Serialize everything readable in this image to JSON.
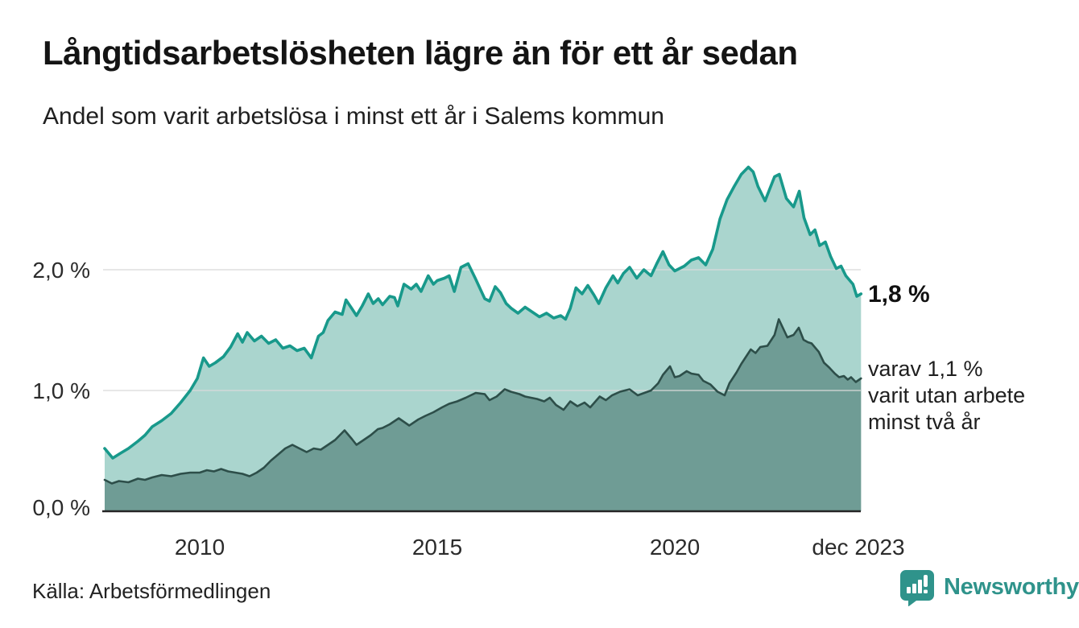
{
  "header": {
    "title": "Långtidsarbetslösheten lägre än för ett år sedan",
    "subtitle": "Andel som varit arbetslösa i minst ett år i Salems kommun"
  },
  "chart_data": {
    "type": "area",
    "title": "Långtidsarbetslösheten lägre än för ett år sedan",
    "subtitle": "Andel som varit arbetslösa i minst ett år i Salems kommun",
    "xlabel": "",
    "ylabel": "",
    "unit": "%",
    "ylim": [
      0,
      3
    ],
    "x_range": [
      2008.0,
      2023.92
    ],
    "grid": true,
    "grid_color": "#d9d9d9",
    "axis_color": "#252525",
    "legend_position": "none",
    "y_axis": {
      "ticks": [
        {
          "label": "0,0 %",
          "value": 0
        },
        {
          "label": "1,0 %",
          "value": 1
        },
        {
          "label": "2,0 %",
          "value": 2
        }
      ]
    },
    "x_axis": {
      "ticks": [
        {
          "label": "2010",
          "year": 2010
        },
        {
          "label": "2015",
          "year": 2015
        },
        {
          "label": "2020",
          "year": 2020
        },
        {
          "label": "dec 2023",
          "year": 2023.92
        }
      ]
    },
    "series": [
      {
        "name": "arbetslösa minst ett år",
        "color": "#18998b",
        "fill": "#aad5ce",
        "stroke_width": 3.6,
        "x": [
          2008.0,
          2008.17,
          2008.33,
          2008.5,
          2008.7,
          2008.85,
          2009.0,
          2009.2,
          2009.4,
          2009.6,
          2009.8,
          2009.95,
          2010.08,
          2010.2,
          2010.33,
          2010.5,
          2010.65,
          2010.8,
          2010.9,
          2011.0,
          2011.15,
          2011.3,
          2011.45,
          2011.6,
          2011.75,
          2011.9,
          2012.05,
          2012.2,
          2012.35,
          2012.5,
          2012.6,
          2012.7,
          2012.85,
          2013.0,
          2013.08,
          2013.2,
          2013.3,
          2013.42,
          2013.55,
          2013.65,
          2013.76,
          2013.85,
          2014.0,
          2014.1,
          2014.17,
          2014.3,
          2014.45,
          2014.56,
          2014.66,
          2014.81,
          2014.92,
          2015.0,
          2015.15,
          2015.25,
          2015.36,
          2015.5,
          2015.65,
          2015.8,
          2016.0,
          2016.1,
          2016.22,
          2016.33,
          2016.45,
          2016.56,
          2016.7,
          2016.85,
          2017.0,
          2017.15,
          2017.3,
          2017.45,
          2017.6,
          2017.7,
          2017.8,
          2017.92,
          2018.05,
          2018.17,
          2018.3,
          2018.4,
          2018.55,
          2018.7,
          2018.8,
          2018.92,
          2019.05,
          2019.2,
          2019.35,
          2019.5,
          2019.62,
          2019.75,
          2019.88,
          2020.0,
          2020.2,
          2020.35,
          2020.5,
          2020.65,
          2020.8,
          2020.95,
          2021.1,
          2021.25,
          2021.4,
          2021.55,
          2021.65,
          2021.75,
          2021.9,
          2022.0,
          2022.1,
          2022.2,
          2022.35,
          2022.5,
          2022.62,
          2022.72,
          2022.85,
          2022.95,
          2023.05,
          2023.17,
          2023.28,
          2023.4,
          2023.5,
          2023.6,
          2023.75,
          2023.83,
          2023.92
        ],
        "values": [
          0.52,
          0.44,
          0.48,
          0.52,
          0.58,
          0.63,
          0.7,
          0.75,
          0.81,
          0.9,
          1.0,
          1.1,
          1.27,
          1.2,
          1.23,
          1.28,
          1.36,
          1.47,
          1.4,
          1.48,
          1.41,
          1.45,
          1.39,
          1.42,
          1.35,
          1.37,
          1.33,
          1.35,
          1.27,
          1.45,
          1.48,
          1.58,
          1.65,
          1.63,
          1.75,
          1.68,
          1.62,
          1.7,
          1.8,
          1.72,
          1.76,
          1.71,
          1.78,
          1.77,
          1.7,
          1.88,
          1.84,
          1.88,
          1.82,
          1.95,
          1.88,
          1.91,
          1.93,
          1.95,
          1.82,
          2.02,
          2.05,
          1.93,
          1.76,
          1.74,
          1.86,
          1.81,
          1.72,
          1.68,
          1.64,
          1.69,
          1.65,
          1.61,
          1.64,
          1.6,
          1.62,
          1.59,
          1.68,
          1.85,
          1.8,
          1.87,
          1.79,
          1.72,
          1.85,
          1.95,
          1.89,
          1.97,
          2.02,
          1.93,
          2.0,
          1.95,
          2.05,
          2.15,
          2.04,
          1.99,
          2.03,
          2.08,
          2.1,
          2.04,
          2.17,
          2.42,
          2.58,
          2.69,
          2.79,
          2.85,
          2.81,
          2.69,
          2.57,
          2.67,
          2.77,
          2.79,
          2.59,
          2.52,
          2.65,
          2.43,
          2.29,
          2.33,
          2.2,
          2.23,
          2.11,
          2.01,
          2.03,
          1.95,
          1.88,
          1.78,
          1.8
        ]
      },
      {
        "name": "varit utan arbete minst två år",
        "color": "#2d4e49",
        "fill": "#6f9c95",
        "stroke_width": 2.6,
        "x": [
          2008.0,
          2008.15,
          2008.3,
          2008.5,
          2008.7,
          2008.85,
          2009.0,
          2009.2,
          2009.4,
          2009.6,
          2009.8,
          2010.0,
          2010.15,
          2010.3,
          2010.45,
          2010.6,
          2010.75,
          2010.9,
          2011.05,
          2011.2,
          2011.35,
          2011.5,
          2011.65,
          2011.8,
          2011.95,
          2012.1,
          2012.25,
          2012.4,
          2012.55,
          2012.7,
          2012.85,
          2013.05,
          2013.2,
          2013.3,
          2013.45,
          2013.6,
          2013.75,
          2013.85,
          2014.0,
          2014.19,
          2014.41,
          2014.6,
          2014.75,
          2014.92,
          2015.1,
          2015.25,
          2015.42,
          2015.6,
          2015.81,
          2016.0,
          2016.1,
          2016.25,
          2016.42,
          2016.55,
          2016.73,
          2016.85,
          2017.1,
          2017.25,
          2017.37,
          2017.5,
          2017.66,
          2017.8,
          2017.95,
          2018.1,
          2018.22,
          2018.42,
          2018.55,
          2018.68,
          2018.85,
          2019.05,
          2019.22,
          2019.36,
          2019.5,
          2019.65,
          2019.75,
          2019.9,
          2020.0,
          2020.1,
          2020.25,
          2020.35,
          2020.5,
          2020.6,
          2020.75,
          2020.9,
          2021.05,
          2021.15,
          2021.3,
          2021.4,
          2021.5,
          2021.6,
          2021.7,
          2021.8,
          2021.95,
          2022.1,
          2022.19,
          2022.37,
          2022.5,
          2022.61,
          2022.71,
          2022.8,
          2022.88,
          2023.03,
          2023.14,
          2023.25,
          2023.37,
          2023.46,
          2023.56,
          2023.64,
          2023.71,
          2023.81,
          2023.92
        ],
        "values": [
          0.26,
          0.23,
          0.25,
          0.24,
          0.27,
          0.26,
          0.28,
          0.3,
          0.29,
          0.31,
          0.32,
          0.32,
          0.34,
          0.33,
          0.35,
          0.33,
          0.32,
          0.31,
          0.29,
          0.32,
          0.36,
          0.42,
          0.47,
          0.52,
          0.55,
          0.52,
          0.49,
          0.52,
          0.51,
          0.55,
          0.59,
          0.67,
          0.6,
          0.55,
          0.59,
          0.63,
          0.68,
          0.69,
          0.72,
          0.77,
          0.71,
          0.76,
          0.79,
          0.82,
          0.86,
          0.89,
          0.91,
          0.94,
          0.98,
          0.97,
          0.92,
          0.95,
          1.01,
          0.99,
          0.97,
          0.95,
          0.93,
          0.91,
          0.94,
          0.88,
          0.84,
          0.91,
          0.87,
          0.9,
          0.86,
          0.95,
          0.92,
          0.96,
          0.99,
          1.01,
          0.96,
          0.98,
          1.0,
          1.06,
          1.13,
          1.2,
          1.11,
          1.12,
          1.16,
          1.14,
          1.13,
          1.08,
          1.05,
          0.99,
          0.96,
          1.06,
          1.15,
          1.22,
          1.28,
          1.34,
          1.31,
          1.36,
          1.37,
          1.46,
          1.59,
          1.44,
          1.46,
          1.52,
          1.42,
          1.4,
          1.39,
          1.32,
          1.23,
          1.19,
          1.14,
          1.11,
          1.12,
          1.09,
          1.11,
          1.07,
          1.1
        ]
      }
    ],
    "annotations": [
      {
        "text": "1,8 %",
        "bold": true,
        "series": "arbetslösa minst ett år"
      },
      {
        "lines": [
          "varav 1,1 %",
          "varit utan arbete",
          "minst två år"
        ],
        "series": "varit utan arbete minst två år"
      }
    ]
  },
  "annotation": {
    "end_value": "1,8 %",
    "secondary_line1": "varav 1,1 %",
    "secondary_line2": "varit utan arbete",
    "secondary_line3": "minst två år"
  },
  "footer": {
    "source": "Källa: Arbetsförmedlingen",
    "brand": "Newsworthy"
  },
  "colors": {
    "accent_teal": "#18998b",
    "light_fill": "#aad5ce",
    "dark_fill": "#6f9c95",
    "dark_stroke": "#2d4e49",
    "brand_teal": "#2f938b",
    "grid": "#d9d9d9"
  }
}
